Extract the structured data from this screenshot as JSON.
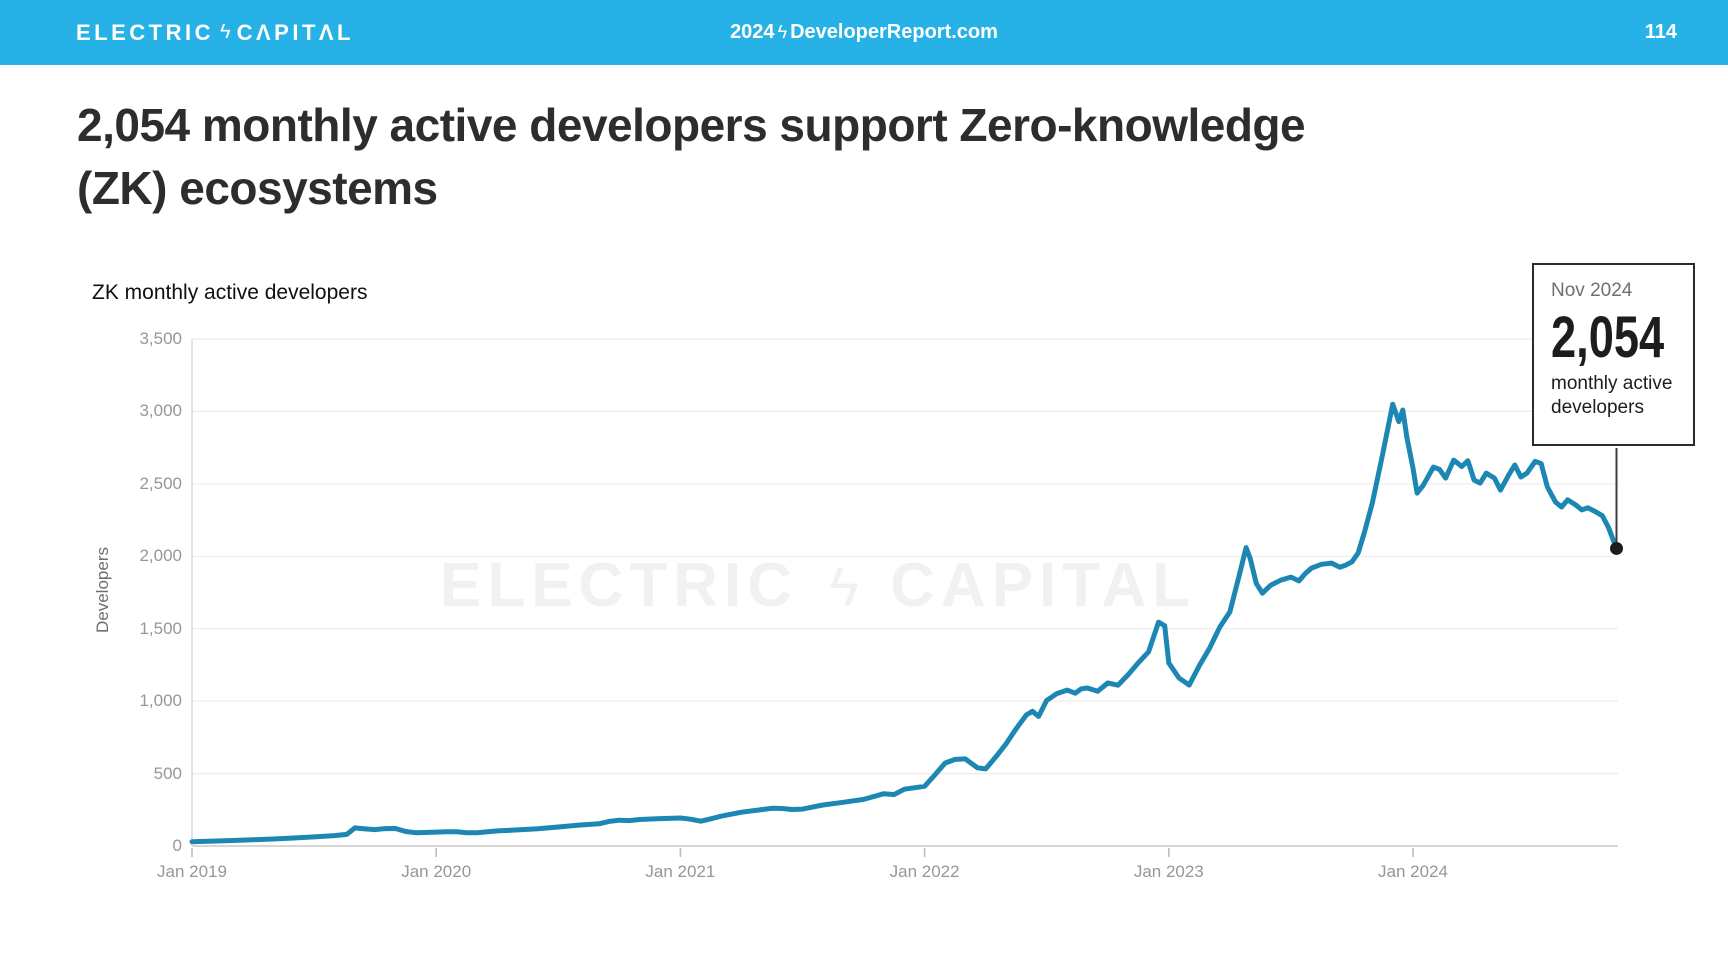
{
  "header": {
    "brand_left": "ELECTRIC",
    "brand_right": "CΛPITΛL",
    "bolt_glyph": "ϟ",
    "center_year": "2024",
    "center_site": "DeveloperReport.com",
    "page_number": "114",
    "bar_color": "#27b2e7"
  },
  "title": "2,054 monthly active developers support Zero-knowledge (ZK) ecosystems",
  "watermark": {
    "left": "ELECTRIC",
    "right": "CAPITAL",
    "bolt_glyph": "ϟ"
  },
  "chart_data": {
    "type": "line",
    "title": "ZK monthly active developers",
    "ylabel": "Developers",
    "ylim": [
      0,
      3500
    ],
    "grid": "horizontal",
    "line_color": "#1d87b4",
    "x_unit": "months since Jan 2019",
    "x_ticks": [
      {
        "m": 0,
        "label": "Jan 2019"
      },
      {
        "m": 12,
        "label": "Jan 2020"
      },
      {
        "m": 24,
        "label": "Jan 2021"
      },
      {
        "m": 36,
        "label": "Jan 2022"
      },
      {
        "m": 48,
        "label": "Jan 2023"
      },
      {
        "m": 60,
        "label": "Jan 2024"
      }
    ],
    "y_ticks": [
      {
        "v": 0,
        "label": "0"
      },
      {
        "v": 500,
        "label": "500"
      },
      {
        "v": 1000,
        "label": "1,000"
      },
      {
        "v": 1500,
        "label": "1,500"
      },
      {
        "v": 2000,
        "label": "2,000"
      },
      {
        "v": 2500,
        "label": "2,500"
      },
      {
        "v": 3000,
        "label": "3,000"
      },
      {
        "v": 3500,
        "label": "3,500"
      }
    ],
    "series": [
      {
        "name": "ZK monthly active developers",
        "color": "#1d87b4",
        "points": [
          [
            0,
            30
          ],
          [
            1,
            34
          ],
          [
            2,
            38
          ],
          [
            3,
            43
          ],
          [
            4,
            48
          ],
          [
            5,
            55
          ],
          [
            6,
            63
          ],
          [
            7,
            72
          ],
          [
            7.6,
            80
          ],
          [
            8,
            125
          ],
          [
            8.5,
            118
          ],
          [
            9,
            113
          ],
          [
            9.5,
            120
          ],
          [
            10,
            121
          ],
          [
            10.5,
            100
          ],
          [
            11,
            92
          ],
          [
            12,
            96
          ],
          [
            12.5,
            99
          ],
          [
            13,
            99
          ],
          [
            13.5,
            92
          ],
          [
            14,
            91
          ],
          [
            15,
            104
          ],
          [
            16,
            111
          ],
          [
            17,
            119
          ],
          [
            18,
            131
          ],
          [
            19,
            144
          ],
          [
            20,
            153
          ],
          [
            20.5,
            170
          ],
          [
            21,
            178
          ],
          [
            21.5,
            175
          ],
          [
            22,
            183
          ],
          [
            23,
            189
          ],
          [
            24,
            193
          ],
          [
            24.5,
            185
          ],
          [
            25,
            171
          ],
          [
            25.5,
            188
          ],
          [
            26,
            206
          ],
          [
            27,
            233
          ],
          [
            28,
            251
          ],
          [
            28.5,
            260
          ],
          [
            29,
            259
          ],
          [
            29.5,
            252
          ],
          [
            30,
            255
          ],
          [
            31,
            283
          ],
          [
            32,
            302
          ],
          [
            33,
            322
          ],
          [
            34,
            361
          ],
          [
            34.5,
            355
          ],
          [
            35,
            392
          ],
          [
            36,
            412
          ],
          [
            36.5,
            490
          ],
          [
            37,
            572
          ],
          [
            37.5,
            598
          ],
          [
            38,
            601
          ],
          [
            38.3,
            570
          ],
          [
            38.6,
            540
          ],
          [
            39,
            532
          ],
          [
            39.5,
            615
          ],
          [
            40,
            705
          ],
          [
            40.5,
            810
          ],
          [
            41,
            904
          ],
          [
            41.3,
            930
          ],
          [
            41.6,
            895
          ],
          [
            42,
            1005
          ],
          [
            42.5,
            1052
          ],
          [
            43,
            1076
          ],
          [
            43.4,
            1055
          ],
          [
            43.7,
            1085
          ],
          [
            44,
            1091
          ],
          [
            44.5,
            1068
          ],
          [
            45,
            1125
          ],
          [
            45.5,
            1110
          ],
          [
            46,
            1182
          ],
          [
            46.5,
            1265
          ],
          [
            47,
            1340
          ],
          [
            47.5,
            1546
          ],
          [
            47.8,
            1520
          ],
          [
            48,
            1263
          ],
          [
            48.5,
            1160
          ],
          [
            49,
            1111
          ],
          [
            49.5,
            1245
          ],
          [
            50,
            1365
          ],
          [
            50.5,
            1510
          ],
          [
            51,
            1616
          ],
          [
            51.5,
            1890
          ],
          [
            51.8,
            2060
          ],
          [
            52,
            1985
          ],
          [
            52.3,
            1813
          ],
          [
            52.6,
            1745
          ],
          [
            53,
            1800
          ],
          [
            53.5,
            1835
          ],
          [
            54,
            1856
          ],
          [
            54.4,
            1830
          ],
          [
            54.7,
            1880
          ],
          [
            55,
            1918
          ],
          [
            55.5,
            1945
          ],
          [
            56,
            1953
          ],
          [
            56.4,
            1925
          ],
          [
            56.7,
            1939
          ],
          [
            57,
            1962
          ],
          [
            57.3,
            2022
          ],
          [
            57.6,
            2160
          ],
          [
            58,
            2367
          ],
          [
            58.5,
            2700
          ],
          [
            59,
            3050
          ],
          [
            59.3,
            2930
          ],
          [
            59.5,
            3010
          ],
          [
            59.7,
            2820
          ],
          [
            60,
            2609
          ],
          [
            60.2,
            2436
          ],
          [
            60.5,
            2490
          ],
          [
            61,
            2616
          ],
          [
            61.3,
            2600
          ],
          [
            61.6,
            2540
          ],
          [
            62,
            2664
          ],
          [
            62.4,
            2620
          ],
          [
            62.7,
            2660
          ],
          [
            63,
            2526
          ],
          [
            63.3,
            2505
          ],
          [
            63.6,
            2574
          ],
          [
            64,
            2540
          ],
          [
            64.3,
            2457
          ],
          [
            64.7,
            2560
          ],
          [
            65,
            2630
          ],
          [
            65.3,
            2547
          ],
          [
            65.6,
            2574
          ],
          [
            66,
            2655
          ],
          [
            66.3,
            2640
          ],
          [
            66.6,
            2480
          ],
          [
            67,
            2374
          ],
          [
            67.3,
            2340
          ],
          [
            67.6,
            2390
          ],
          [
            68,
            2354
          ],
          [
            68.3,
            2320
          ],
          [
            68.6,
            2335
          ],
          [
            69,
            2305
          ],
          [
            69.3,
            2280
          ],
          [
            69.6,
            2200
          ],
          [
            70,
            2054
          ]
        ]
      }
    ],
    "endpoint": {
      "m": 70,
      "v": 2054,
      "month_label": "Nov 2024",
      "value_label": "2,054",
      "caption": "monthly active developers"
    }
  }
}
